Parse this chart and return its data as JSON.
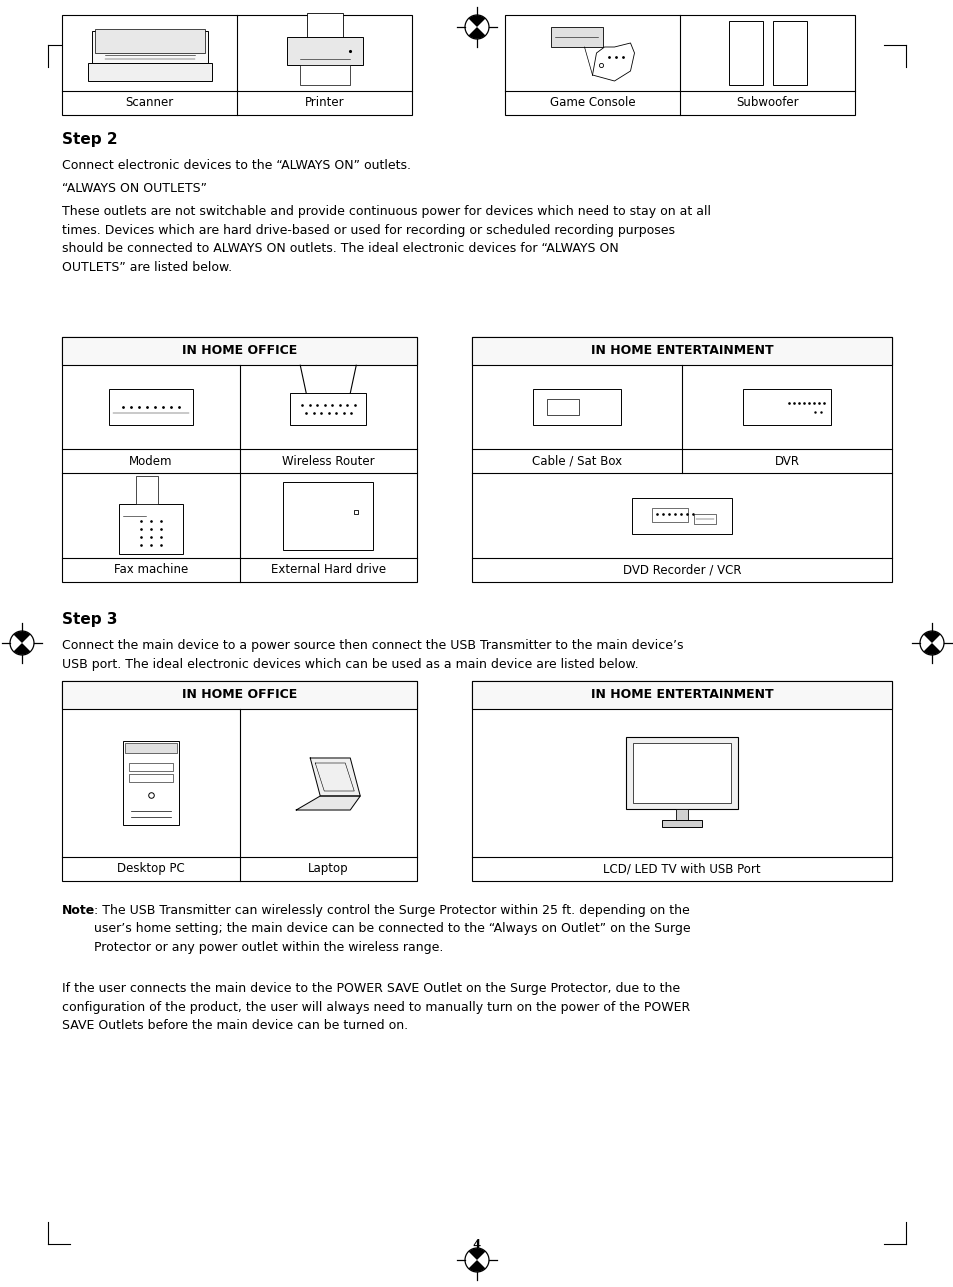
{
  "bg_color": "#ffffff",
  "text_color": "#000000",
  "page_width": 9.54,
  "page_height": 12.87,
  "step2_heading": "Step 2",
  "step2_para1": "Connect electronic devices to the “ALWAYS ON” outlets.",
  "step2_para2": "“ALWAYS ON OUTLETS”",
  "step2_para3": "These outlets are not switchable and provide continuous power for devices which need to stay on at all\ntimes. Devices which are hard drive-based or used for recording or scheduled recording purposes\nshould be connected to ALWAYS ON outlets. The ideal electronic devices for “ALWAYS ON\nOUTLETS” are listed below.",
  "step3_heading": "Step 3",
  "step3_para1": "Connect the main device to a power source then connect the USB Transmitter to the main device’s\nUSB port. The ideal electronic devices which can be used as a main device are listed below.",
  "note_text": "Note: The USB Transmitter can wirelessly control the Surge Protector within 25 ft. depending on the\nuser’s home setting; the main device can be connected to the “Always on Outlet” on the Surge\nProtector or any power outlet within the wireless range.",
  "para_final": "If the user connects the main device to the POWER SAVE Outlet on the Surge Protector, due to the\nconfiguration of the product, the user will always need to manually turn on the power of the POWER\nSAVE Outlets before the main device can be turned on.",
  "page_number": "4",
  "step2_office_header": "IN HOME OFFICE",
  "step2_entertainment_header": "IN HOME ENTERTAINMENT",
  "step3_office_header": "IN HOME OFFICE",
  "step3_entertainment_header": "IN HOME ENTERTAINMENT"
}
